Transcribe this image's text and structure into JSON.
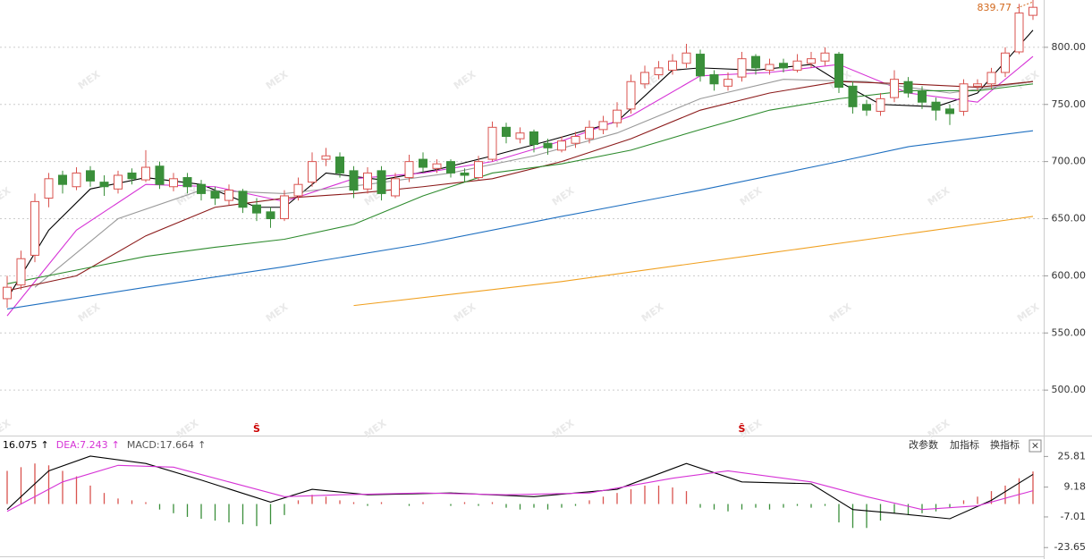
{
  "chart_data": {
    "type": "candlestick",
    "up_color": "#d9534f",
    "down_color": "#3a8f3a",
    "ylim": [
      460.2,
      841.4
    ],
    "yticks": [
      {
        "value": 500,
        "label": "500.00"
      },
      {
        "value": 550,
        "label": "550.00"
      },
      {
        "value": 600,
        "label": "600.00"
      },
      {
        "value": 650,
        "label": "650.00"
      },
      {
        "value": 700,
        "label": "700.00"
      },
      {
        "value": 750,
        "label": "750.00"
      },
      {
        "value": 800,
        "label": "800.00"
      }
    ],
    "grid": true,
    "candles": [
      [
        580,
        600,
        572,
        590
      ],
      [
        592,
        622,
        588,
        615
      ],
      [
        618,
        672,
        612,
        665
      ],
      [
        668,
        690,
        660,
        685
      ],
      [
        688,
        692,
        672,
        680
      ],
      [
        678,
        695,
        675,
        690
      ],
      [
        692,
        696,
        678,
        683
      ],
      [
        682,
        688,
        670,
        678
      ],
      [
        676,
        692,
        672,
        688
      ],
      [
        690,
        694,
        680,
        685
      ],
      [
        684,
        710,
        682,
        695
      ],
      [
        696,
        700,
        676,
        680
      ],
      [
        678,
        690,
        674,
        685
      ],
      [
        686,
        690,
        672,
        678
      ],
      [
        680,
        684,
        666,
        672
      ],
      [
        674,
        678,
        662,
        668
      ],
      [
        666,
        680,
        662,
        675
      ],
      [
        674,
        676,
        655,
        660
      ],
      [
        662,
        668,
        648,
        655
      ],
      [
        656,
        660,
        642,
        650
      ],
      [
        650,
        675,
        648,
        670
      ],
      [
        670,
        686,
        666,
        680
      ],
      [
        682,
        708,
        678,
        700
      ],
      [
        702,
        712,
        696,
        705
      ],
      [
        704,
        708,
        686,
        690
      ],
      [
        692,
        696,
        668,
        675
      ],
      [
        676,
        695,
        672,
        690
      ],
      [
        692,
        696,
        666,
        672
      ],
      [
        670,
        690,
        668,
        685
      ],
      [
        686,
        706,
        682,
        700
      ],
      [
        702,
        708,
        690,
        695
      ],
      [
        694,
        702,
        690,
        698
      ],
      [
        700,
        702,
        686,
        690
      ],
      [
        690,
        694,
        682,
        688
      ],
      [
        686,
        705,
        684,
        700
      ],
      [
        702,
        735,
        700,
        730
      ],
      [
        730,
        734,
        716,
        722
      ],
      [
        720,
        730,
        716,
        725
      ],
      [
        726,
        728,
        708,
        715
      ],
      [
        716,
        720,
        706,
        712
      ],
      [
        710,
        722,
        708,
        718
      ],
      [
        716,
        726,
        712,
        722
      ],
      [
        720,
        736,
        716,
        730
      ],
      [
        728,
        740,
        724,
        735
      ],
      [
        734,
        752,
        730,
        745
      ],
      [
        746,
        776,
        742,
        770
      ],
      [
        768,
        784,
        764,
        778
      ],
      [
        776,
        788,
        772,
        782
      ],
      [
        780,
        794,
        776,
        788
      ],
      [
        786,
        803,
        782,
        795
      ],
      [
        794,
        798,
        770,
        775
      ],
      [
        776,
        780,
        762,
        768
      ],
      [
        766,
        778,
        762,
        772
      ],
      [
        774,
        796,
        770,
        790
      ],
      [
        792,
        794,
        776,
        782
      ],
      [
        780,
        790,
        776,
        785
      ],
      [
        786,
        790,
        778,
        782
      ],
      [
        780,
        794,
        778,
        788
      ],
      [
        786,
        796,
        782,
        790
      ],
      [
        788,
        800,
        784,
        795
      ],
      [
        794,
        796,
        760,
        765
      ],
      [
        766,
        770,
        742,
        748
      ],
      [
        750,
        754,
        740,
        745
      ],
      [
        744,
        760,
        740,
        755
      ],
      [
        756,
        780,
        752,
        772
      ],
      [
        770,
        774,
        756,
        760
      ],
      [
        762,
        766,
        746,
        752
      ],
      [
        752,
        756,
        736,
        745
      ],
      [
        746,
        750,
        732,
        742
      ],
      [
        744,
        772,
        740,
        768
      ],
      [
        766,
        772,
        762,
        768
      ],
      [
        768,
        782,
        764,
        778
      ],
      [
        778,
        800,
        774,
        795
      ],
      [
        796,
        838,
        794,
        830
      ],
      [
        828,
        842,
        824,
        835
      ]
    ],
    "ma_lines": [
      {
        "color": "#000000",
        "x": [
          0,
          3,
          6,
          10,
          14,
          18,
          20,
          23,
          27,
          31,
          35,
          39,
          44,
          48,
          50,
          54,
          58,
          60,
          63,
          67,
          70,
          74
        ],
        "values": [
          580,
          640,
          676,
          686,
          680,
          660,
          660,
          690,
          684,
          693,
          705,
          718,
          735,
          780,
          782,
          780,
          785,
          770,
          750,
          748,
          760,
          815
        ]
      },
      {
        "color": "#d633d6",
        "x": [
          0,
          5,
          10,
          15,
          20,
          25,
          30,
          35,
          40,
          45,
          50,
          55,
          60,
          65,
          70,
          74
        ],
        "values": [
          565,
          640,
          680,
          678,
          665,
          685,
          690,
          700,
          718,
          740,
          775,
          778,
          785,
          760,
          752,
          792
        ]
      },
      {
        "color": "#999999",
        "x": [
          2,
          8,
          14,
          20,
          26,
          32,
          38,
          44,
          50,
          56,
          62,
          68,
          74
        ],
        "values": [
          590,
          650,
          675,
          672,
          680,
          690,
          705,
          725,
          755,
          772,
          770,
          760,
          770
        ]
      },
      {
        "color": "#8b1a1a",
        "x": [
          0,
          5,
          10,
          15,
          20,
          25,
          30,
          35,
          40,
          45,
          50,
          55,
          60,
          65,
          70,
          74
        ],
        "values": [
          587,
          600,
          635,
          660,
          668,
          672,
          678,
          685,
          700,
          720,
          745,
          760,
          770,
          768,
          765,
          770
        ]
      },
      {
        "color": "#2e8b2e",
        "x": [
          0,
          5,
          10,
          15,
          20,
          25,
          30,
          35,
          40,
          45,
          50,
          55,
          60,
          65,
          70,
          74
        ],
        "values": [
          593,
          605,
          617,
          625,
          632,
          645,
          670,
          690,
          698,
          710,
          728,
          745,
          755,
          762,
          762,
          768
        ]
      },
      {
        "color": "#1e6fc0",
        "x": [
          0,
          10,
          20,
          30,
          40,
          50,
          60,
          65,
          74
        ],
        "values": [
          571,
          590,
          608,
          628,
          652,
          675,
          700,
          713,
          727
        ]
      },
      {
        "color": "#f0a020",
        "x": [
          25,
          40,
          55,
          74
        ],
        "values": [
          574,
          595,
          620,
          652
        ]
      }
    ],
    "last_price": 839.77,
    "signal": {
      "label": "Ŝ",
      "x": [
        18,
        53
      ]
    },
    "watermark": "MEX",
    "macd": {
      "ylim": [
        -28.4,
        35.7
      ],
      "yticks": [
        25.81,
        9.18,
        -7.01,
        -23.65
      ],
      "header": [
        "16.075",
        "↑",
        "DEA:7.243",
        "↑",
        "MACD:17.664",
        "↑"
      ],
      "header_colors": [
        "#000000",
        "#000000",
        "#d633d6",
        "#d633d6",
        "#555555",
        "#555555"
      ],
      "bars": [
        18,
        20,
        22,
        21,
        18,
        15,
        10,
        6,
        3,
        2,
        1,
        -3,
        -5,
        -7,
        -8,
        -9,
        -10,
        -11,
        -12,
        -11,
        -6,
        2,
        5,
        4,
        2,
        1,
        -1,
        1,
        0,
        -1,
        1,
        0,
        -1,
        1,
        -1,
        1,
        -2,
        -3,
        -2,
        -3,
        -2,
        -1,
        2,
        4,
        6,
        8,
        10,
        10,
        9,
        7,
        -2,
        -3,
        -4,
        -3,
        -2,
        -3,
        -2,
        -1,
        -2,
        -1,
        -10,
        -13,
        -13,
        -9,
        -5,
        -6,
        -5,
        -4,
        -2,
        2,
        4,
        7,
        10,
        14,
        17.664
      ],
      "dif": {
        "color": "#000000",
        "x": [
          0,
          3,
          6,
          10,
          14,
          19,
          22,
          26,
          32,
          38,
          44,
          49,
          53,
          58,
          61,
          64,
          68,
          71,
          74
        ],
        "values": [
          -3,
          18,
          26,
          22,
          13,
          1,
          8,
          5,
          6,
          4,
          8,
          22,
          12,
          11,
          -3,
          -5,
          -8,
          2,
          16.075
        ]
      },
      "dea": {
        "color": "#d633d6",
        "x": [
          0,
          4,
          8,
          12,
          16,
          20,
          24,
          30,
          36,
          42,
          48,
          52,
          58,
          62,
          66,
          70,
          74
        ],
        "values": [
          -4,
          12,
          21,
          20,
          12,
          4,
          5,
          6,
          5,
          6,
          14,
          18,
          12,
          4,
          -3,
          -1,
          7.243
        ]
      }
    },
    "buttons": [
      "改参数",
      "加指标",
      "换指标",
      "×"
    ]
  }
}
